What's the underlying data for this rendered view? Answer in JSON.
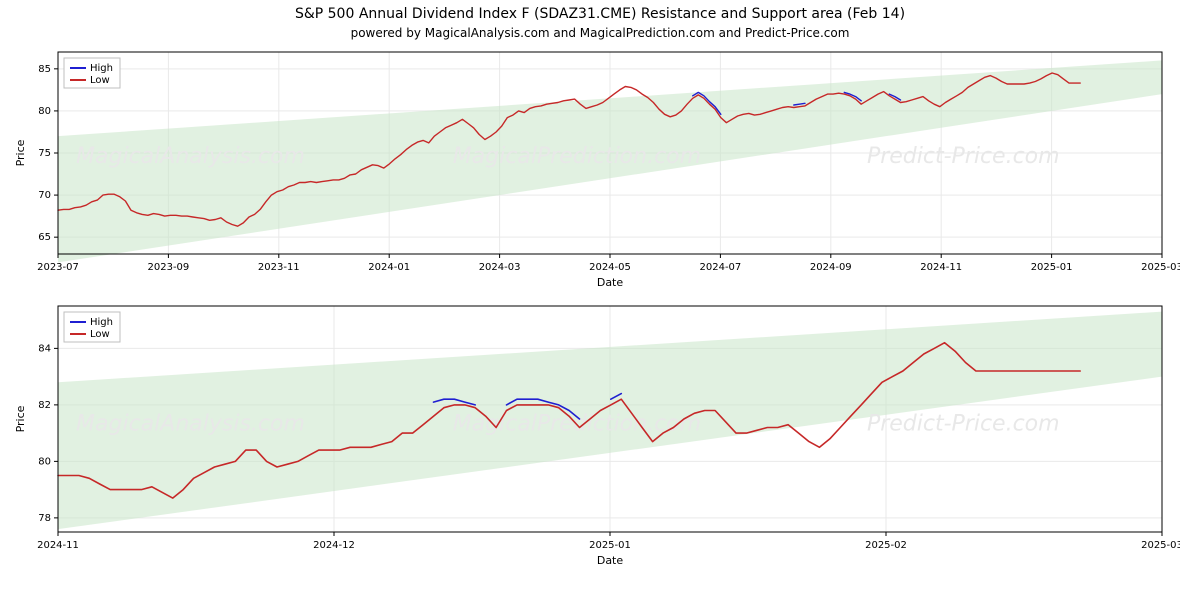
{
  "title": "S&P 500 Annual Dividend Index F (SDAZ31.CME) Resistance and Support area (Feb 14)",
  "subtitle": "powered by MagicalAnalysis.com and MagicalPrediction.com and Predict-Price.com",
  "watermarks": [
    "MagicalAnalysis.com",
    "MagicalPrediction.com",
    "Predict-Price.com"
  ],
  "legend": {
    "high_label": "High",
    "low_label": "Low",
    "high_color": "#1f1fd1",
    "low_color": "#c62828"
  },
  "chart_top": {
    "type": "line",
    "xlabel": "Date",
    "ylabel": "Price",
    "ylim": [
      63,
      87
    ],
    "yticks": [
      65,
      70,
      75,
      80,
      85
    ],
    "xticks": [
      "2023-07",
      "2023-09",
      "2023-11",
      "2024-01",
      "2024-03",
      "2024-05",
      "2024-07",
      "2024-09",
      "2024-11",
      "2025-01",
      "2025-03"
    ],
    "background_color": "#ffffff",
    "grid_color": "#e9e9e9",
    "frame_color": "#000000",
    "band_color": "#c9e5c9",
    "band_opacity": 0.55,
    "band_top_start": 77,
    "band_top_end": 86,
    "band_bot_start": 62,
    "band_bot_end": 82,
    "line_width": 1.4,
    "series_low": {
      "color": "#c62828",
      "points": [
        [
          0,
          68.2
        ],
        [
          1,
          68.3
        ],
        [
          2,
          68.3
        ],
        [
          3,
          68.5
        ],
        [
          4,
          68.6
        ],
        [
          5,
          68.8
        ],
        [
          6,
          69.2
        ],
        [
          7,
          69.4
        ],
        [
          8,
          70.0
        ],
        [
          9,
          70.1
        ],
        [
          10,
          70.1
        ],
        [
          11,
          69.8
        ],
        [
          12,
          69.3
        ],
        [
          13,
          68.2
        ],
        [
          14,
          67.9
        ],
        [
          15,
          67.7
        ],
        [
          16,
          67.6
        ],
        [
          17,
          67.8
        ],
        [
          18,
          67.7
        ],
        [
          19,
          67.5
        ],
        [
          20,
          67.6
        ],
        [
          21,
          67.6
        ],
        [
          22,
          67.5
        ],
        [
          23,
          67.5
        ],
        [
          24,
          67.4
        ],
        [
          25,
          67.3
        ],
        [
          26,
          67.2
        ],
        [
          27,
          67.0
        ],
        [
          28,
          67.1
        ],
        [
          29,
          67.3
        ],
        [
          30,
          66.8
        ],
        [
          31,
          66.5
        ],
        [
          32,
          66.3
        ],
        [
          33,
          66.7
        ],
        [
          34,
          67.4
        ],
        [
          35,
          67.7
        ],
        [
          36,
          68.3
        ],
        [
          37,
          69.2
        ],
        [
          38,
          70.0
        ],
        [
          39,
          70.4
        ],
        [
          40,
          70.6
        ],
        [
          41,
          71.0
        ],
        [
          42,
          71.2
        ],
        [
          43,
          71.5
        ],
        [
          44,
          71.5
        ],
        [
          45,
          71.6
        ],
        [
          46,
          71.5
        ],
        [
          47,
          71.6
        ],
        [
          48,
          71.7
        ],
        [
          49,
          71.8
        ],
        [
          50,
          71.8
        ],
        [
          51,
          72.0
        ],
        [
          52,
          72.4
        ],
        [
          53,
          72.5
        ],
        [
          54,
          73.0
        ],
        [
          55,
          73.3
        ],
        [
          56,
          73.6
        ],
        [
          57,
          73.5
        ],
        [
          58,
          73.2
        ],
        [
          59,
          73.7
        ],
        [
          60,
          74.3
        ],
        [
          61,
          74.8
        ],
        [
          62,
          75.4
        ],
        [
          63,
          75.9
        ],
        [
          64,
          76.3
        ],
        [
          65,
          76.5
        ],
        [
          66,
          76.2
        ],
        [
          67,
          77.0
        ],
        [
          68,
          77.5
        ],
        [
          69,
          78.0
        ],
        [
          70,
          78.3
        ],
        [
          71,
          78.6
        ],
        [
          72,
          79.0
        ],
        [
          73,
          78.5
        ],
        [
          74,
          78.0
        ],
        [
          75,
          77.2
        ],
        [
          76,
          76.6
        ],
        [
          77,
          77.0
        ],
        [
          78,
          77.5
        ],
        [
          79,
          78.2
        ],
        [
          80,
          79.2
        ],
        [
          81,
          79.5
        ],
        [
          82,
          80.0
        ],
        [
          83,
          79.8
        ],
        [
          84,
          80.3
        ],
        [
          85,
          80.5
        ],
        [
          86,
          80.6
        ],
        [
          87,
          80.8
        ],
        [
          88,
          80.9
        ],
        [
          89,
          81.0
        ],
        [
          90,
          81.2
        ],
        [
          91,
          81.3
        ],
        [
          92,
          81.4
        ],
        [
          93,
          80.8
        ],
        [
          94,
          80.3
        ],
        [
          95,
          80.5
        ],
        [
          96,
          80.7
        ],
        [
          97,
          81.0
        ],
        [
          98,
          81.5
        ],
        [
          99,
          82.0
        ],
        [
          100,
          82.5
        ],
        [
          101,
          82.9
        ],
        [
          102,
          82.8
        ],
        [
          103,
          82.5
        ],
        [
          104,
          82.0
        ],
        [
          105,
          81.6
        ],
        [
          106,
          81.0
        ],
        [
          107,
          80.2
        ],
        [
          108,
          79.6
        ],
        [
          109,
          79.3
        ],
        [
          110,
          79.5
        ],
        [
          111,
          80.0
        ],
        [
          112,
          80.8
        ],
        [
          113,
          81.5
        ],
        [
          114,
          81.9
        ],
        [
          115,
          81.5
        ],
        [
          116,
          80.8
        ],
        [
          117,
          80.2
        ],
        [
          118,
          79.2
        ],
        [
          119,
          78.6
        ],
        [
          120,
          79.0
        ],
        [
          121,
          79.4
        ],
        [
          122,
          79.6
        ],
        [
          123,
          79.7
        ],
        [
          124,
          79.5
        ],
        [
          125,
          79.6
        ],
        [
          126,
          79.8
        ],
        [
          127,
          80.0
        ],
        [
          128,
          80.2
        ],
        [
          129,
          80.4
        ],
        [
          130,
          80.5
        ],
        [
          131,
          80.4
        ],
        [
          132,
          80.5
        ],
        [
          133,
          80.6
        ],
        [
          134,
          81.0
        ],
        [
          135,
          81.4
        ],
        [
          136,
          81.7
        ],
        [
          137,
          82.0
        ],
        [
          138,
          82.0
        ],
        [
          139,
          82.1
        ],
        [
          140,
          82.0
        ],
        [
          141,
          81.8
        ],
        [
          142,
          81.4
        ],
        [
          143,
          80.8
        ],
        [
          144,
          81.2
        ],
        [
          145,
          81.6
        ],
        [
          146,
          82.0
        ],
        [
          147,
          82.3
        ],
        [
          148,
          81.8
        ],
        [
          149,
          81.4
        ],
        [
          150,
          81.0
        ],
        [
          151,
          81.1
        ],
        [
          152,
          81.3
        ],
        [
          153,
          81.5
        ],
        [
          154,
          81.7
        ],
        [
          155,
          81.2
        ],
        [
          156,
          80.8
        ],
        [
          157,
          80.5
        ],
        [
          158,
          81.0
        ],
        [
          159,
          81.4
        ],
        [
          160,
          81.8
        ],
        [
          161,
          82.2
        ],
        [
          162,
          82.8
        ],
        [
          163,
          83.2
        ],
        [
          164,
          83.6
        ],
        [
          165,
          84.0
        ],
        [
          166,
          84.2
        ],
        [
          167,
          83.9
        ],
        [
          168,
          83.5
        ],
        [
          169,
          83.2
        ],
        [
          170,
          83.2
        ],
        [
          171,
          83.2
        ],
        [
          172,
          83.2
        ],
        [
          173,
          83.3
        ],
        [
          174,
          83.5
        ],
        [
          175,
          83.8
        ],
        [
          176,
          84.2
        ],
        [
          177,
          84.5
        ],
        [
          178,
          84.3
        ],
        [
          179,
          83.8
        ],
        [
          180,
          83.3
        ],
        [
          181,
          83.3
        ],
        [
          182,
          83.3
        ]
      ]
    },
    "series_high": {
      "color": "#1f1fd1",
      "points": [
        [
          113,
          81.8
        ],
        [
          114,
          82.2
        ],
        [
          115,
          81.8
        ],
        [
          116,
          81.1
        ],
        [
          117,
          80.5
        ],
        [
          118,
          79.6
        ],
        [
          131,
          80.7
        ],
        [
          132,
          80.8
        ],
        [
          133,
          80.9
        ],
        [
          140,
          82.2
        ],
        [
          141,
          82.0
        ],
        [
          142,
          81.7
        ],
        [
          143,
          81.2
        ],
        [
          148,
          82.0
        ],
        [
          149,
          81.7
        ],
        [
          150,
          81.3
        ]
      ]
    }
  },
  "chart_bottom": {
    "type": "line",
    "xlabel": "Date",
    "ylabel": "Price",
    "ylim": [
      77.5,
      85.5
    ],
    "yticks": [
      78,
      80,
      82,
      84
    ],
    "xticks": [
      "2024-11",
      "2024-12",
      "2025-01",
      "2025-02",
      "2025-03"
    ],
    "background_color": "#ffffff",
    "grid_color": "#e9e9e9",
    "frame_color": "#000000",
    "band_color": "#c9e5c9",
    "band_opacity": 0.55,
    "band_top_start": 82.8,
    "band_top_end": 85.3,
    "band_bot_start": 77.6,
    "band_bot_end": 83.0,
    "line_width": 1.6,
    "series_low": {
      "color": "#c62828",
      "points": [
        [
          0,
          79.5
        ],
        [
          1,
          79.5
        ],
        [
          2,
          79.5
        ],
        [
          3,
          79.4
        ],
        [
          4,
          79.2
        ],
        [
          5,
          79.0
        ],
        [
          6,
          79.0
        ],
        [
          7,
          79.0
        ],
        [
          8,
          79.0
        ],
        [
          9,
          79.1
        ],
        [
          10,
          78.9
        ],
        [
          11,
          78.7
        ],
        [
          12,
          79.0
        ],
        [
          13,
          79.4
        ],
        [
          14,
          79.6
        ],
        [
          15,
          79.8
        ],
        [
          16,
          79.9
        ],
        [
          17,
          80.0
        ],
        [
          18,
          80.4
        ],
        [
          19,
          80.4
        ],
        [
          20,
          80.0
        ],
        [
          21,
          79.8
        ],
        [
          22,
          79.9
        ],
        [
          23,
          80.0
        ],
        [
          24,
          80.2
        ],
        [
          25,
          80.4
        ],
        [
          26,
          80.4
        ],
        [
          27,
          80.4
        ],
        [
          28,
          80.5
        ],
        [
          29,
          80.5
        ],
        [
          30,
          80.5
        ],
        [
          31,
          80.6
        ],
        [
          32,
          80.7
        ],
        [
          33,
          81.0
        ],
        [
          34,
          81.0
        ],
        [
          35,
          81.3
        ],
        [
          36,
          81.6
        ],
        [
          37,
          81.9
        ],
        [
          38,
          82.0
        ],
        [
          39,
          82.0
        ],
        [
          40,
          81.9
        ],
        [
          41,
          81.6
        ],
        [
          42,
          81.2
        ],
        [
          43,
          81.8
        ],
        [
          44,
          82.0
        ],
        [
          45,
          82.0
        ],
        [
          46,
          82.0
        ],
        [
          47,
          82.0
        ],
        [
          48,
          81.9
        ],
        [
          49,
          81.6
        ],
        [
          50,
          81.2
        ],
        [
          51,
          81.5
        ],
        [
          52,
          81.8
        ],
        [
          53,
          82.0
        ],
        [
          54,
          82.2
        ],
        [
          55,
          81.7
        ],
        [
          56,
          81.2
        ],
        [
          57,
          80.7
        ],
        [
          58,
          81.0
        ],
        [
          59,
          81.2
        ],
        [
          60,
          81.5
        ],
        [
          61,
          81.7
        ],
        [
          62,
          81.8
        ],
        [
          63,
          81.8
        ],
        [
          64,
          81.4
        ],
        [
          65,
          81.0
        ],
        [
          66,
          81.0
        ],
        [
          67,
          81.1
        ],
        [
          68,
          81.2
        ],
        [
          69,
          81.2
        ],
        [
          70,
          81.3
        ],
        [
          71,
          81.0
        ],
        [
          72,
          80.7
        ],
        [
          73,
          80.5
        ],
        [
          74,
          80.8
        ],
        [
          75,
          81.2
        ],
        [
          76,
          81.6
        ],
        [
          77,
          82.0
        ],
        [
          78,
          82.4
        ],
        [
          79,
          82.8
        ],
        [
          80,
          83.0
        ],
        [
          81,
          83.2
        ],
        [
          82,
          83.5
        ],
        [
          83,
          83.8
        ],
        [
          84,
          84.0
        ],
        [
          85,
          84.2
        ],
        [
          86,
          83.9
        ],
        [
          87,
          83.5
        ],
        [
          88,
          83.2
        ],
        [
          89,
          83.2
        ],
        [
          90,
          83.2
        ],
        [
          91,
          83.2
        ],
        [
          92,
          83.2
        ],
        [
          93,
          83.2
        ],
        [
          94,
          83.2
        ],
        [
          95,
          83.2
        ],
        [
          96,
          83.2
        ],
        [
          97,
          83.2
        ],
        [
          98,
          83.2
        ]
      ]
    },
    "series_high": {
      "color": "#1f1fd1",
      "points": [
        [
          36,
          82.1
        ],
        [
          37,
          82.2
        ],
        [
          38,
          82.2
        ],
        [
          39,
          82.1
        ],
        [
          40,
          82.0
        ],
        [
          43,
          82.0
        ],
        [
          44,
          82.2
        ],
        [
          45,
          82.2
        ],
        [
          46,
          82.2
        ],
        [
          47,
          82.1
        ],
        [
          48,
          82.0
        ],
        [
          49,
          81.8
        ],
        [
          50,
          81.5
        ],
        [
          53,
          82.2
        ],
        [
          54,
          82.4
        ]
      ]
    }
  }
}
